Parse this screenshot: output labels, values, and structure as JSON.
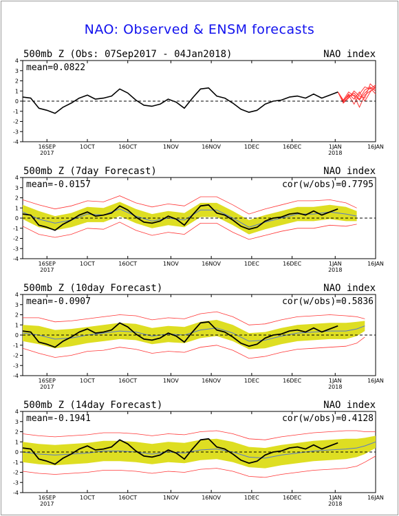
{
  "title": "NAO: Observed & ENSM forecasts",
  "colors": {
    "title": "#1111ee",
    "observed": "#000000",
    "ensemble_members": "#ff3333",
    "ensemble_spread": "#dede22",
    "ensemble_mean": "#5577cc",
    "zero_line": "#000000"
  },
  "x_ticks": [
    {
      "label": "16SEP",
      "year": "2017"
    },
    {
      "label": "1OCT",
      "year": ""
    },
    {
      "label": "16OCT",
      "year": ""
    },
    {
      "label": "1NOV",
      "year": ""
    },
    {
      "label": "16NOV",
      "year": ""
    },
    {
      "label": "1DEC",
      "year": ""
    },
    {
      "label": "16DEC",
      "year": ""
    },
    {
      "label": "1JAN",
      "year": "2018"
    },
    {
      "label": "16JAN",
      "year": ""
    }
  ],
  "y_ticks": [
    "4",
    "3",
    "2",
    "1",
    "0",
    "-1",
    "-2",
    "-3",
    "-4"
  ],
  "chart_data": [
    {
      "type": "line",
      "title": "500mb Z (Obs: 07Sep2017 - 04Jan2018)",
      "right_title": "NAO index",
      "mean_label": "mean=0.0822",
      "corr_label": "",
      "ylim": [
        -4,
        4
      ],
      "x_range_days": [
        0,
        131
      ],
      "grid": false,
      "observed": {
        "x": [
          0,
          3,
          6,
          9,
          12,
          15,
          18,
          21,
          24,
          27,
          30,
          33,
          36,
          39,
          42,
          45,
          48,
          51,
          54,
          57,
          60,
          63,
          66,
          69,
          72,
          75,
          78,
          81,
          84,
          87,
          90,
          93,
          96,
          99,
          102,
          105,
          108,
          111,
          114,
          117
        ],
        "y": [
          0.4,
          0.3,
          -0.7,
          -0.9,
          -1.2,
          -0.6,
          -0.2,
          0.3,
          0.6,
          0.2,
          0.3,
          0.5,
          1.2,
          0.8,
          0.1,
          -0.4,
          -0.5,
          -0.3,
          0.2,
          -0.1,
          -0.7,
          0.3,
          1.2,
          1.3,
          0.5,
          0.3,
          -0.2,
          -0.8,
          -1.1,
          -0.9,
          -0.3,
          0.0,
          0.1,
          0.4,
          0.5,
          0.3,
          0.7,
          0.3,
          0.6,
          0.9
        ]
      },
      "members": [
        {
          "x": [
            117,
            119,
            121,
            123,
            125,
            127,
            129,
            131
          ],
          "y": [
            0.9,
            -0.1,
            0.4,
            0.8,
            0.2,
            1.1,
            1.4,
            1.0
          ]
        },
        {
          "x": [
            117,
            119,
            121,
            123,
            125,
            127,
            129,
            131
          ],
          "y": [
            0.9,
            0.0,
            0.6,
            -0.3,
            0.7,
            1.4,
            1.2,
            1.6
          ]
        },
        {
          "x": [
            117,
            119,
            121,
            123,
            125,
            127,
            129,
            131
          ],
          "y": [
            0.9,
            0.1,
            0.9,
            0.5,
            -0.6,
            0.6,
            1.0,
            1.3
          ]
        },
        {
          "x": [
            117,
            119,
            121,
            123,
            125,
            127,
            129,
            131
          ],
          "y": [
            0.9,
            -0.2,
            0.3,
            1.0,
            0.5,
            0.3,
            1.7,
            1.2
          ]
        },
        {
          "x": [
            117,
            119,
            121,
            123,
            125,
            127,
            129,
            131
          ],
          "y": [
            0.9,
            0.0,
            0.7,
            0.2,
            0.9,
            0.0,
            0.9,
            1.5
          ]
        },
        {
          "x": [
            117,
            119,
            121,
            123,
            125,
            127,
            129,
            131
          ],
          "y": [
            0.9,
            0.1,
            0.5,
            0.6,
            0.1,
            0.8,
            1.3,
            0.7
          ]
        }
      ]
    },
    {
      "type": "line",
      "title": "500mb Z (7day Forecast)",
      "right_title": "NAO index",
      "mean_label": "mean=-0.0157",
      "corr_label": "cor(w/obs)=0.7795",
      "ylim": [
        -4,
        4
      ],
      "x_range_days": [
        0,
        131
      ],
      "grid": false,
      "observed": {
        "x": [
          0,
          3,
          6,
          9,
          12,
          15,
          18,
          21,
          24,
          27,
          30,
          33,
          36,
          39,
          42,
          45,
          48,
          51,
          54,
          57,
          60,
          63,
          66,
          69,
          72,
          75,
          78,
          81,
          84,
          87,
          90,
          93,
          96,
          99,
          102,
          105,
          108,
          111,
          114,
          117
        ],
        "y": [
          0.4,
          0.3,
          -0.7,
          -0.9,
          -1.2,
          -0.6,
          -0.2,
          0.3,
          0.6,
          0.2,
          0.3,
          0.5,
          1.2,
          0.8,
          0.1,
          -0.4,
          -0.5,
          -0.3,
          0.2,
          -0.1,
          -0.7,
          0.3,
          1.2,
          1.3,
          0.5,
          0.3,
          -0.2,
          -0.8,
          -1.1,
          -0.9,
          -0.3,
          0.0,
          0.1,
          0.4,
          0.5,
          0.3,
          0.7,
          0.3,
          0.6,
          0.9
        ]
      },
      "mean": {
        "x": [
          0,
          6,
          12,
          18,
          24,
          30,
          36,
          42,
          48,
          54,
          60,
          66,
          72,
          78,
          84,
          90,
          96,
          102,
          108,
          114,
          120,
          124
        ],
        "y": [
          0.6,
          -0.1,
          -0.5,
          -0.2,
          0.4,
          0.3,
          0.9,
          0.2,
          -0.3,
          0.0,
          -0.2,
          0.8,
          0.8,
          0.0,
          -0.9,
          -0.4,
          0.0,
          0.4,
          0.4,
          0.6,
          0.4,
          0.2
        ]
      },
      "spread": {
        "x": [
          0,
          6,
          12,
          18,
          24,
          30,
          36,
          42,
          48,
          54,
          60,
          66,
          72,
          78,
          84,
          90,
          96,
          102,
          108,
          114,
          120,
          124
        ],
        "lower": [
          -0.1,
          -0.9,
          -1.2,
          -0.9,
          -0.4,
          -0.4,
          0.2,
          -0.5,
          -1.0,
          -0.7,
          -0.9,
          0.1,
          0.1,
          -0.7,
          -1.6,
          -1.1,
          -0.7,
          -0.3,
          -0.3,
          -0.1,
          -0.3,
          -0.3
        ],
        "upper": [
          1.3,
          0.7,
          0.2,
          0.5,
          1.1,
          1.0,
          1.6,
          0.9,
          0.4,
          0.7,
          0.5,
          1.5,
          1.5,
          0.7,
          -0.2,
          0.3,
          0.7,
          1.1,
          1.1,
          1.3,
          1.1,
          0.7
        ]
      },
      "envelope_lower": [
        -0.8,
        -1.6,
        -1.9,
        -1.6,
        -1.0,
        -1.1,
        -0.4,
        -1.2,
        -1.7,
        -1.4,
        -1.6,
        -0.5,
        -0.5,
        -1.4,
        -2.1,
        -1.7,
        -1.3,
        -1.0,
        -1.0,
        -0.7,
        -0.8,
        -0.6
      ],
      "envelope_upper": [
        1.8,
        1.3,
        0.9,
        1.2,
        1.7,
        1.6,
        2.2,
        1.5,
        1.1,
        1.4,
        1.2,
        2.1,
        2.1,
        1.3,
        0.4,
        0.9,
        1.3,
        1.7,
        1.7,
        1.8,
        1.5,
        1.0
      ]
    },
    {
      "type": "line",
      "title": "500mb Z (10day Forecast)",
      "right_title": "NAO index",
      "mean_label": "mean=-0.0907",
      "corr_label": "cor(w/obs)=0.5836",
      "ylim": [
        -4,
        4
      ],
      "x_range_days": [
        0,
        131
      ],
      "grid": false,
      "observed": {
        "x": [
          0,
          3,
          6,
          9,
          12,
          15,
          18,
          21,
          24,
          27,
          30,
          33,
          36,
          39,
          42,
          45,
          48,
          51,
          54,
          57,
          60,
          63,
          66,
          69,
          72,
          75,
          78,
          81,
          84,
          87,
          90,
          93,
          96,
          99,
          102,
          105,
          108,
          111,
          114,
          117
        ],
        "y": [
          0.4,
          0.3,
          -0.7,
          -0.9,
          -1.2,
          -0.6,
          -0.2,
          0.3,
          0.6,
          0.2,
          0.3,
          0.5,
          1.2,
          0.8,
          0.1,
          -0.4,
          -0.5,
          -0.3,
          0.2,
          -0.1,
          -0.7,
          0.3,
          1.2,
          1.3,
          0.5,
          0.3,
          -0.2,
          -0.8,
          -1.1,
          -0.9,
          -0.3,
          0.0,
          0.1,
          0.4,
          0.5,
          0.3,
          0.7,
          0.3,
          0.6,
          0.9
        ]
      },
      "mean": {
        "x": [
          0,
          6,
          12,
          18,
          24,
          30,
          36,
          42,
          48,
          54,
          60,
          66,
          72,
          78,
          84,
          90,
          96,
          102,
          108,
          114,
          120,
          124,
          127
        ],
        "y": [
          0.2,
          0.0,
          -0.4,
          -0.3,
          0.0,
          0.2,
          0.4,
          0.3,
          -0.1,
          0.1,
          0.0,
          0.5,
          0.7,
          0.2,
          -0.6,
          -0.5,
          -0.1,
          0.2,
          0.3,
          0.4,
          0.4,
          0.6,
          0.9
        ]
      },
      "spread": {
        "x": [
          0,
          6,
          12,
          18,
          24,
          30,
          36,
          42,
          48,
          54,
          60,
          66,
          72,
          78,
          84,
          90,
          96,
          102,
          108,
          114,
          120,
          124,
          127
        ],
        "lower": [
          -0.6,
          -0.9,
          -1.3,
          -1.1,
          -0.8,
          -0.6,
          -0.4,
          -0.5,
          -0.9,
          -0.7,
          -0.8,
          -0.3,
          -0.1,
          -0.6,
          -1.4,
          -1.3,
          -0.9,
          -0.6,
          -0.5,
          -0.4,
          -0.4,
          -0.1,
          0.4
        ],
        "upper": [
          1.0,
          0.9,
          0.5,
          0.6,
          0.8,
          1.0,
          1.2,
          1.1,
          0.7,
          0.9,
          0.8,
          1.3,
          1.5,
          1.0,
          0.2,
          0.3,
          0.7,
          1.0,
          1.1,
          1.2,
          1.2,
          1.3,
          1.4
        ]
      },
      "envelope_lower": [
        -1.3,
        -1.8,
        -2.2,
        -2.0,
        -1.6,
        -1.5,
        -1.2,
        -1.4,
        -1.8,
        -1.6,
        -1.7,
        -1.2,
        -1.0,
        -1.5,
        -2.3,
        -2.1,
        -1.7,
        -1.4,
        -1.3,
        -1.2,
        -1.1,
        -0.8,
        -0.2
      ],
      "envelope_upper": [
        1.7,
        1.7,
        1.3,
        1.4,
        1.6,
        1.8,
        2.0,
        1.9,
        1.5,
        1.7,
        1.6,
        2.1,
        2.3,
        1.8,
        1.0,
        1.1,
        1.5,
        1.8,
        1.9,
        2.0,
        1.9,
        1.8,
        1.6
      ]
    },
    {
      "type": "line",
      "title": "500mb Z (14day Forecast)",
      "right_title": "NAO index",
      "mean_label": "mean=-0.1941",
      "corr_label": "cor(w/obs)=0.4128",
      "ylim": [
        -4,
        4
      ],
      "x_range_days": [
        0,
        131
      ],
      "grid": false,
      "observed": {
        "x": [
          0,
          3,
          6,
          9,
          12,
          15,
          18,
          21,
          24,
          27,
          30,
          33,
          36,
          39,
          42,
          45,
          48,
          51,
          54,
          57,
          60,
          63,
          66,
          69,
          72,
          75,
          78,
          81,
          84,
          87,
          90,
          93,
          96,
          99,
          102,
          105,
          108,
          111,
          114,
          117
        ],
        "y": [
          0.4,
          0.3,
          -0.7,
          -0.9,
          -1.2,
          -0.6,
          -0.2,
          0.3,
          0.6,
          0.2,
          0.3,
          0.5,
          1.2,
          0.8,
          0.1,
          -0.4,
          -0.5,
          -0.3,
          0.2,
          -0.1,
          -0.7,
          0.3,
          1.2,
          1.3,
          0.5,
          0.3,
          -0.2,
          -0.8,
          -1.1,
          -0.9,
          -0.3,
          0.0,
          0.1,
          0.4,
          0.5,
          0.3,
          0.7,
          0.3,
          0.6,
          0.9
        ]
      },
      "mean": {
        "x": [
          0,
          6,
          12,
          18,
          24,
          30,
          36,
          42,
          48,
          54,
          60,
          66,
          72,
          78,
          84,
          90,
          96,
          102,
          108,
          114,
          120,
          124,
          127,
          131
        ],
        "y": [
          0.0,
          -0.2,
          -0.3,
          -0.2,
          -0.1,
          0.1,
          0.1,
          0.0,
          -0.2,
          0.0,
          -0.1,
          0.2,
          0.3,
          0.0,
          -0.5,
          -0.6,
          -0.3,
          -0.1,
          0.1,
          0.2,
          0.3,
          0.4,
          0.6,
          1.0
        ]
      },
      "spread": {
        "x": [
          0,
          6,
          12,
          18,
          24,
          30,
          36,
          42,
          48,
          54,
          60,
          66,
          72,
          78,
          84,
          90,
          96,
          102,
          108,
          114,
          120,
          124,
          127,
          131
        ],
        "lower": [
          -1.0,
          -1.2,
          -1.3,
          -1.2,
          -1.1,
          -0.9,
          -0.9,
          -1.0,
          -1.2,
          -1.0,
          -1.1,
          -0.8,
          -0.7,
          -1.0,
          -1.5,
          -1.6,
          -1.3,
          -1.1,
          -0.9,
          -0.8,
          -0.7,
          -0.5,
          -0.2,
          0.4
        ],
        "upper": [
          1.0,
          0.8,
          0.7,
          0.8,
          0.9,
          1.1,
          1.1,
          1.0,
          0.8,
          1.0,
          0.9,
          1.2,
          1.3,
          1.0,
          0.5,
          0.4,
          0.7,
          0.9,
          1.1,
          1.2,
          1.3,
          1.3,
          1.4,
          1.6
        ]
      },
      "envelope_lower": [
        -1.9,
        -2.1,
        -2.2,
        -2.1,
        -2.0,
        -1.8,
        -1.8,
        -1.9,
        -2.1,
        -1.9,
        -2.0,
        -1.7,
        -1.6,
        -1.9,
        -2.4,
        -2.5,
        -2.2,
        -2.0,
        -1.8,
        -1.7,
        -1.6,
        -1.4,
        -1.0,
        -0.4
      ],
      "envelope_upper": [
        1.8,
        1.6,
        1.5,
        1.6,
        1.7,
        1.9,
        1.9,
        1.8,
        1.6,
        1.8,
        1.7,
        2.0,
        2.1,
        1.8,
        1.3,
        1.2,
        1.5,
        1.7,
        1.9,
        2.0,
        2.1,
        2.1,
        2.0,
        2.0
      ]
    }
  ]
}
